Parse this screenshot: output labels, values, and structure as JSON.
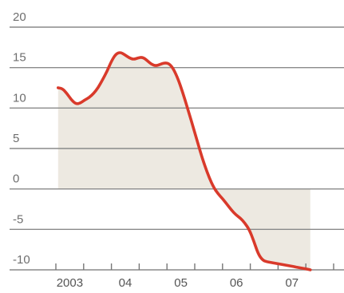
{
  "chart_data": {
    "type": "area",
    "title": "",
    "xlabel": "",
    "ylabel": "",
    "ylim": [
      -10,
      20
    ],
    "yticks": [
      20,
      15,
      10,
      5,
      0,
      -5,
      -10
    ],
    "ytick_labels": [
      "20",
      "15",
      "10",
      "5",
      "0",
      "-5",
      "-10"
    ],
    "xlim": [
      2003.0,
      2008.0
    ],
    "xticks": [
      2003.0,
      2003.5,
      2004.0,
      2004.5,
      2005.0,
      2005.5,
      2006.0,
      2006.5,
      2007.0,
      2007.5,
      2008.0
    ],
    "x_labels": [
      {
        "x": 2003.25,
        "label": "2003"
      },
      {
        "x": 2004.25,
        "label": "04"
      },
      {
        "x": 2005.25,
        "label": "05"
      },
      {
        "x": 2006.25,
        "label": "06"
      },
      {
        "x": 2007.25,
        "label": "07"
      }
    ],
    "grid": true,
    "line_color": "#d93a2b",
    "area_color": "#ede9e1",
    "grid_color": "#8a8a8a",
    "series": [
      {
        "x": [
          2003.04,
          2003.12,
          2003.2,
          2003.28,
          2003.36,
          2003.44,
          2003.52,
          2003.6,
          2003.68,
          2003.76,
          2003.84,
          2003.92,
          2004.0,
          2004.08,
          2004.16,
          2004.24,
          2004.32,
          2004.4,
          2004.48,
          2004.56,
          2004.64,
          2004.72,
          2004.8,
          2004.88,
          2004.96,
          2005.04,
          2005.12,
          2005.2,
          2005.28,
          2005.36,
          2005.44,
          2005.52,
          2005.6,
          2005.68,
          2005.76,
          2005.84,
          2005.92,
          2006.0,
          2006.08,
          2006.16,
          2006.24,
          2006.32,
          2006.4,
          2006.48,
          2006.56,
          2006.64,
          2006.72,
          2006.8,
          2006.88,
          2006.96,
          2007.04,
          2007.12,
          2007.2,
          2007.28,
          2007.36,
          2007.44,
          2007.52,
          2007.58
        ],
        "values": [
          12.5,
          12.4,
          11.8,
          11.0,
          10.5,
          10.6,
          11.0,
          11.3,
          11.8,
          12.5,
          13.5,
          14.5,
          15.8,
          16.7,
          16.9,
          16.6,
          16.2,
          16.0,
          16.2,
          16.3,
          15.9,
          15.4,
          15.2,
          15.4,
          15.6,
          15.5,
          14.8,
          13.6,
          12.0,
          10.2,
          8.4,
          6.5,
          4.6,
          2.9,
          1.4,
          0.2,
          -0.6,
          -1.2,
          -1.9,
          -2.6,
          -3.2,
          -3.6,
          -4.2,
          -5.0,
          -6.4,
          -8.0,
          -8.8,
          -9.0,
          -9.1,
          -9.2,
          -9.3,
          -9.4,
          -9.5,
          -9.6,
          -9.7,
          -9.8,
          -9.9,
          -10.0
        ]
      }
    ]
  }
}
